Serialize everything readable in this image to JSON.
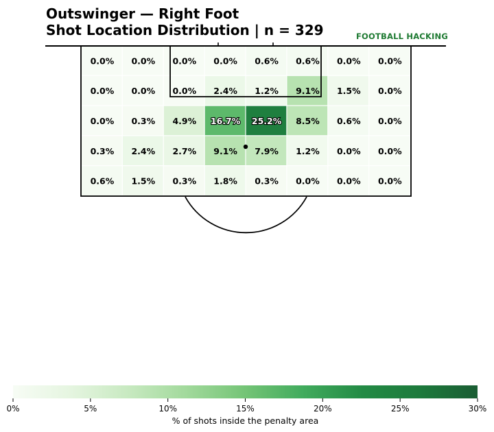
{
  "header": {
    "title_line1": "Outswinger — Right Foot",
    "title_line2": "Shot Location Distribution | n = 329",
    "brand": "FOOTBALL HACKING"
  },
  "colors": {
    "brand": "#1e7a32",
    "cmap_low": "#f7fcf5",
    "cmap_high": "#1a5d33",
    "pitch_lines": "#000000"
  },
  "chart_data": {
    "type": "heatmap",
    "title": "Outswinger — Right Foot\nShot Location Distribution | n = 329",
    "rows": 5,
    "cols": 8,
    "values": [
      [
        0.0,
        0.0,
        0.0,
        0.0,
        0.6,
        0.6,
        0.0,
        0.0
      ],
      [
        0.0,
        0.0,
        0.0,
        2.4,
        1.2,
        9.1,
        1.5,
        0.0
      ],
      [
        0.0,
        0.3,
        4.9,
        16.7,
        25.2,
        8.5,
        0.6,
        0.0
      ],
      [
        0.3,
        2.4,
        2.7,
        9.1,
        7.9,
        1.2,
        0.0,
        0.0
      ],
      [
        0.6,
        1.5,
        0.3,
        1.8,
        0.3,
        0.0,
        0.0,
        0.0
      ]
    ],
    "value_unit": "%",
    "colorbar": {
      "min": 0,
      "max": 30,
      "ticks": [
        0,
        5,
        10,
        15,
        20,
        25,
        30
      ],
      "tick_labels": [
        "0%",
        "5%",
        "10%",
        "15%",
        "20%",
        "25%",
        "30%"
      ],
      "label": "% of shots inside the penalty area",
      "colormap": "Greens"
    }
  }
}
